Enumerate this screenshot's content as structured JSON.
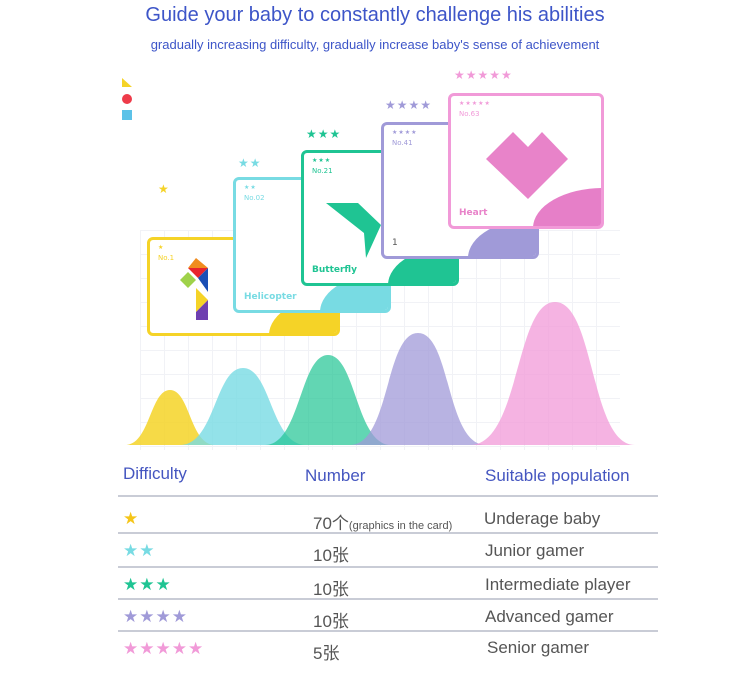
{
  "header": {
    "title": "Guide your baby to constantly challenge his abilities",
    "subtitle": "gradually increasing difficulty, gradually increase baby's sense of achievement"
  },
  "colors": {
    "level1": "#f5d327",
    "level2": "#78dbe3",
    "level3": "#1fc493",
    "level4": "#a09ad8",
    "level5": "#f19ad8",
    "accent": "#3d55c8"
  },
  "cards": [
    {
      "stars": "★",
      "no": "No.1",
      "name": ""
    },
    {
      "stars": "★★",
      "no": "No.02",
      "name": "Helicopter"
    },
    {
      "stars": "★★★",
      "no": "No.21",
      "name": "Butterfly"
    },
    {
      "stars": "★★★★",
      "no": "No.41",
      "name": "1"
    },
    {
      "stars": "★★★★★",
      "no": "No.63",
      "name": "Heart"
    }
  ],
  "table": {
    "headers": [
      "Difficulty",
      "Number",
      "Suitable population"
    ],
    "rows": [
      {
        "stars": "★",
        "number": "70个",
        "note": "(graphics in the card)",
        "population": "Underage baby"
      },
      {
        "stars": "★★",
        "number": "10张",
        "note": "",
        "population": "Junior gamer"
      },
      {
        "stars": "★★★",
        "number": "10张",
        "note": "",
        "population": "Intermediate player"
      },
      {
        "stars": "★★★★",
        "number": "10张",
        "note": "",
        "population": "Advanced gamer"
      },
      {
        "stars": "★★★★★",
        "number": "5张",
        "note": "",
        "population": "Senior gamer"
      }
    ]
  }
}
